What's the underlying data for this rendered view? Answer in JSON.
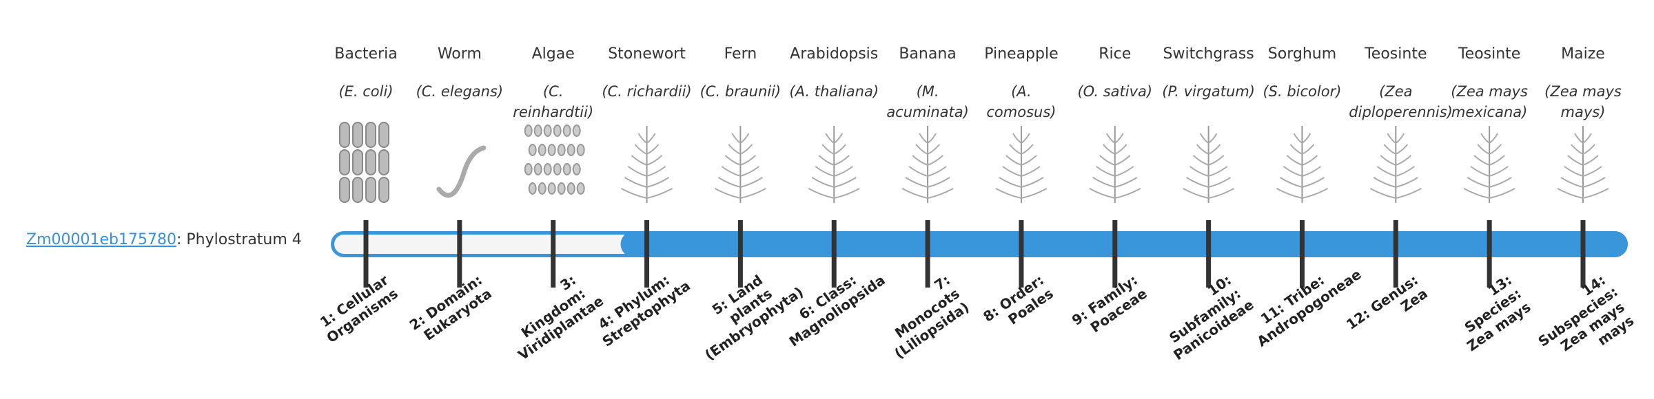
{
  "gene": {
    "id": "Zm00001eb175780",
    "phylostratum": {
      "value": 4,
      "label": ": Phylostratum 4"
    }
  },
  "taxa": [
    {
      "common": "Bacteria",
      "scientific": "(E. coli)",
      "stratum": "1: Cellular Organisms"
    },
    {
      "common": "Worm",
      "scientific": "(C. elegans)",
      "stratum": "2: Domain: Eukaryota"
    },
    {
      "common": "Algae",
      "scientific": "(C. reinhardtii)",
      "stratum": "3: Kingdom: Viridiplantae"
    },
    {
      "common": "Stonewort",
      "scientific": "(C. richardii)",
      "stratum": "4: Phylum: Streptophyta"
    },
    {
      "common": "Fern",
      "scientific": "(C. braunii)",
      "stratum": "5: Land plants (Embryophyta)"
    },
    {
      "common": "Arabidopsis",
      "scientific": "(A. thaliana)",
      "stratum": "6: Class: Magnoliopsida"
    },
    {
      "common": "Banana",
      "scientific": "(M. acuminata)",
      "stratum": "7: Monocots (Liliopsida)"
    },
    {
      "common": "Pineapple",
      "scientific": "(A. comosus)",
      "stratum": "8: Order: Poales"
    },
    {
      "common": "Rice",
      "scientific": "(O. sativa)",
      "stratum": "9: Family: Poaceae"
    },
    {
      "common": "Switchgrass",
      "scientific": "(P. virgatum)",
      "stratum": "10: Subfamily: Panicoideae"
    },
    {
      "common": "Sorghum",
      "scientific": "(S. bicolor)",
      "stratum": "11: Tribe: Andropogoneae"
    },
    {
      "common": "Teosinte",
      "scientific": "(Zea diploperennis)",
      "stratum": "12: Genus: Zea"
    },
    {
      "common": "Teosinte",
      "scientific": "(Zea mays mexicana)",
      "stratum": "13: Species: Zea mays"
    },
    {
      "common": "Maize",
      "scientific": "(Zea mays mays)",
      "stratum": "14: Subspecies: Zea mays mays"
    }
  ]
}
